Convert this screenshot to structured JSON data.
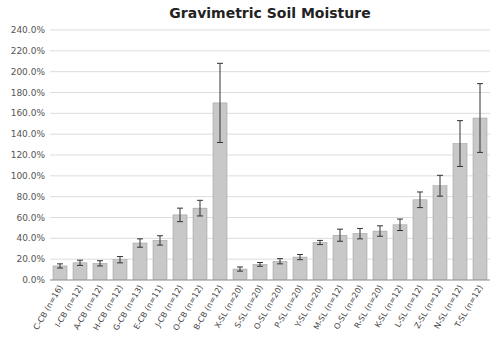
{
  "chart_data": {
    "type": "bar",
    "title": "Gravimetric Soil Moisture",
    "categories": [
      "C-CB (n=16)",
      "I-CB (n=12)",
      "A-CB (n=12)",
      "H-CB (n=12)",
      "G-CB (n=13)",
      "E-CB (n=11)",
      "J-CB (n=12)",
      "O-CB (n=12)",
      "B-CB (n=12)",
      "X-SL (n=20)",
      "S-SL (n=20)",
      "O-SL (n=20)",
      "P-SL (n=20)",
      "Y-SL (n=20)",
      "M-SL (n=12)",
      "O-SL (n=20)",
      "R-SL (n=20)",
      "K-SL (n=12)",
      "L-SL (n=12)",
      "Z-SL (n=12)",
      "N-SL (n=12)",
      "T-SL (n=12)"
    ],
    "values": [
      0.135,
      0.165,
      0.16,
      0.195,
      0.355,
      0.38,
      0.625,
      0.69,
      1.7,
      0.105,
      0.15,
      0.18,
      0.22,
      0.36,
      0.43,
      0.445,
      0.47,
      0.53,
      0.77,
      0.905,
      1.31,
      1.555
    ],
    "errors": [
      0.02,
      0.025,
      0.025,
      0.03,
      0.04,
      0.045,
      0.065,
      0.075,
      0.38,
      0.02,
      0.018,
      0.025,
      0.025,
      0.02,
      0.058,
      0.05,
      0.05,
      0.055,
      0.075,
      0.1,
      0.22,
      0.33
    ],
    "color": "#c8c8c8",
    "ylim": [
      0,
      2.4
    ],
    "yticks": [
      {
        "value": 0.0,
        "label": "0.0%"
      },
      {
        "value": 0.2,
        "label": "20.0%"
      },
      {
        "value": 0.4,
        "label": "40.0%"
      },
      {
        "value": 0.6,
        "label": "60.0%"
      },
      {
        "value": 0.8,
        "label": "80.0%"
      },
      {
        "value": 1.0,
        "label": "100.0%"
      },
      {
        "value": 1.2,
        "label": "120.0%"
      },
      {
        "value": 1.4,
        "label": "140.0%"
      },
      {
        "value": 1.6,
        "label": "160.0%"
      },
      {
        "value": 1.8,
        "label": "180.0%"
      },
      {
        "value": 2.0,
        "label": "200.0%"
      },
      {
        "value": 2.2,
        "label": "220.0%"
      },
      {
        "value": 2.4,
        "label": "240.0%"
      }
    ],
    "grid": true
  }
}
